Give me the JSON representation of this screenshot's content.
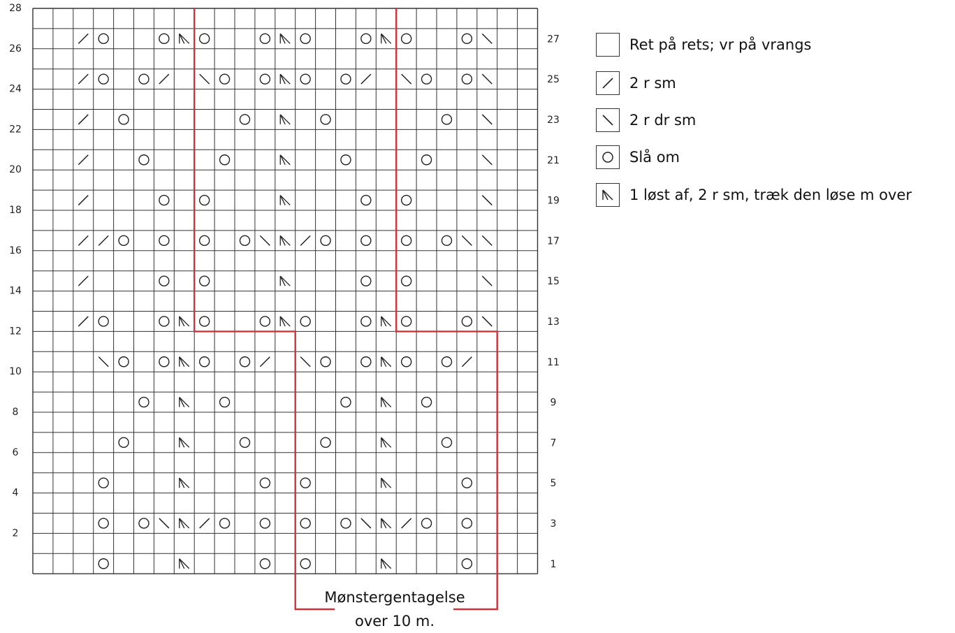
{
  "chart": {
    "cols": 25,
    "rows": 28,
    "left_row_numbers": [
      "28",
      "26",
      "24",
      "22",
      "20",
      "18",
      "16",
      "14",
      "12",
      "10",
      "8",
      "6",
      "4",
      "2"
    ],
    "right_row_numbers": [
      "27",
      "25",
      "23",
      "21",
      "19",
      "17",
      "15",
      "13",
      "11",
      "9",
      "7",
      "5",
      "3",
      "1"
    ],
    "symbol_rows": {
      "27": [
        [
          3,
          "k2tog"
        ],
        [
          4,
          "yo"
        ],
        [
          7,
          "yo"
        ],
        [
          8,
          "sk2p"
        ],
        [
          9,
          "yo"
        ],
        [
          12,
          "yo"
        ],
        [
          13,
          "sk2p"
        ],
        [
          14,
          "yo"
        ],
        [
          17,
          "yo"
        ],
        [
          18,
          "sk2p"
        ],
        [
          19,
          "yo"
        ],
        [
          22,
          "yo"
        ],
        [
          23,
          "ssk"
        ]
      ],
      "25": [
        [
          3,
          "k2tog"
        ],
        [
          4,
          "yo"
        ],
        [
          6,
          "yo"
        ],
        [
          7,
          "k2tog"
        ],
        [
          9,
          "ssk"
        ],
        [
          10,
          "yo"
        ],
        [
          12,
          "yo"
        ],
        [
          13,
          "sk2p"
        ],
        [
          14,
          "yo"
        ],
        [
          16,
          "yo"
        ],
        [
          17,
          "k2tog"
        ],
        [
          19,
          "ssk"
        ],
        [
          20,
          "yo"
        ],
        [
          22,
          "yo"
        ],
        [
          23,
          "ssk"
        ]
      ],
      "23": [
        [
          3,
          "k2tog"
        ],
        [
          5,
          "yo"
        ],
        [
          11,
          "yo"
        ],
        [
          13,
          "sk2p"
        ],
        [
          15,
          "yo"
        ],
        [
          21,
          "yo"
        ],
        [
          23,
          "ssk"
        ]
      ],
      "21": [
        [
          3,
          "k2tog"
        ],
        [
          6,
          "yo"
        ],
        [
          10,
          "yo"
        ],
        [
          13,
          "sk2p"
        ],
        [
          16,
          "yo"
        ],
        [
          20,
          "yo"
        ],
        [
          23,
          "ssk"
        ]
      ],
      "19": [
        [
          3,
          "k2tog"
        ],
        [
          7,
          "yo"
        ],
        [
          9,
          "yo"
        ],
        [
          13,
          "sk2p"
        ],
        [
          17,
          "yo"
        ],
        [
          19,
          "yo"
        ],
        [
          23,
          "ssk"
        ]
      ],
      "17": [
        [
          3,
          "k2tog"
        ],
        [
          4,
          "k2tog"
        ],
        [
          5,
          "yo"
        ],
        [
          7,
          "yo"
        ],
        [
          9,
          "yo"
        ],
        [
          11,
          "yo"
        ],
        [
          12,
          "ssk"
        ],
        [
          13,
          "sk2p"
        ],
        [
          14,
          "k2tog"
        ],
        [
          15,
          "yo"
        ],
        [
          17,
          "yo"
        ],
        [
          19,
          "yo"
        ],
        [
          21,
          "yo"
        ],
        [
          22,
          "ssk"
        ],
        [
          23,
          "ssk"
        ]
      ],
      "15": [
        [
          3,
          "k2tog"
        ],
        [
          7,
          "yo"
        ],
        [
          9,
          "yo"
        ],
        [
          13,
          "sk2p"
        ],
        [
          17,
          "yo"
        ],
        [
          19,
          "yo"
        ],
        [
          23,
          "ssk"
        ]
      ],
      "13": [
        [
          3,
          "k2tog"
        ],
        [
          4,
          "yo"
        ],
        [
          7,
          "yo"
        ],
        [
          8,
          "sk2p"
        ],
        [
          9,
          "yo"
        ],
        [
          12,
          "yo"
        ],
        [
          13,
          "sk2p"
        ],
        [
          14,
          "yo"
        ],
        [
          17,
          "yo"
        ],
        [
          18,
          "sk2p"
        ],
        [
          19,
          "yo"
        ],
        [
          22,
          "yo"
        ],
        [
          23,
          "ssk"
        ]
      ],
      "11": [
        [
          4,
          "ssk"
        ],
        [
          5,
          "yo"
        ],
        [
          7,
          "yo"
        ],
        [
          8,
          "sk2p"
        ],
        [
          9,
          "yo"
        ],
        [
          11,
          "yo"
        ],
        [
          12,
          "k2tog"
        ],
        [
          14,
          "ssk"
        ],
        [
          15,
          "yo"
        ],
        [
          17,
          "yo"
        ],
        [
          18,
          "sk2p"
        ],
        [
          19,
          "yo"
        ],
        [
          21,
          "yo"
        ],
        [
          22,
          "k2tog"
        ]
      ],
      "9": [
        [
          6,
          "yo"
        ],
        [
          8,
          "sk2p"
        ],
        [
          10,
          "yo"
        ],
        [
          16,
          "yo"
        ],
        [
          18,
          "sk2p"
        ],
        [
          20,
          "yo"
        ]
      ],
      "7": [
        [
          5,
          "yo"
        ],
        [
          8,
          "sk2p"
        ],
        [
          11,
          "yo"
        ],
        [
          15,
          "yo"
        ],
        [
          18,
          "sk2p"
        ],
        [
          21,
          "yo"
        ]
      ],
      "5": [
        [
          4,
          "yo"
        ],
        [
          8,
          "sk2p"
        ],
        [
          12,
          "yo"
        ],
        [
          14,
          "yo"
        ],
        [
          18,
          "sk2p"
        ],
        [
          22,
          "yo"
        ]
      ],
      "3": [
        [
          4,
          "yo"
        ],
        [
          6,
          "yo"
        ],
        [
          7,
          "ssk"
        ],
        [
          8,
          "sk2p"
        ],
        [
          9,
          "k2tog"
        ],
        [
          10,
          "yo"
        ],
        [
          12,
          "yo"
        ],
        [
          14,
          "yo"
        ],
        [
          16,
          "yo"
        ],
        [
          17,
          "ssk"
        ],
        [
          18,
          "sk2p"
        ],
        [
          19,
          "k2tog"
        ],
        [
          20,
          "yo"
        ],
        [
          22,
          "yo"
        ]
      ],
      "1": [
        [
          4,
          "yo"
        ],
        [
          8,
          "sk2p"
        ],
        [
          12,
          "yo"
        ],
        [
          14,
          "yo"
        ],
        [
          18,
          "sk2p"
        ],
        [
          22,
          "yo"
        ]
      ]
    }
  },
  "repeat_outline_color": "#d0323b",
  "repeat_label_line1": "Mønstergentagelse",
  "repeat_label_line2": "over 10 m.",
  "legend": [
    {
      "symbol": "blank",
      "text": "Ret på rets; vr på vrangs"
    },
    {
      "symbol": "k2tog",
      "text": "2 r sm"
    },
    {
      "symbol": "ssk",
      "text": "2 r dr sm"
    },
    {
      "symbol": "yo",
      "text": "Slå om"
    },
    {
      "symbol": "sk2p",
      "text": "1 løst af, 2 r sm, træk den løse m over"
    }
  ]
}
